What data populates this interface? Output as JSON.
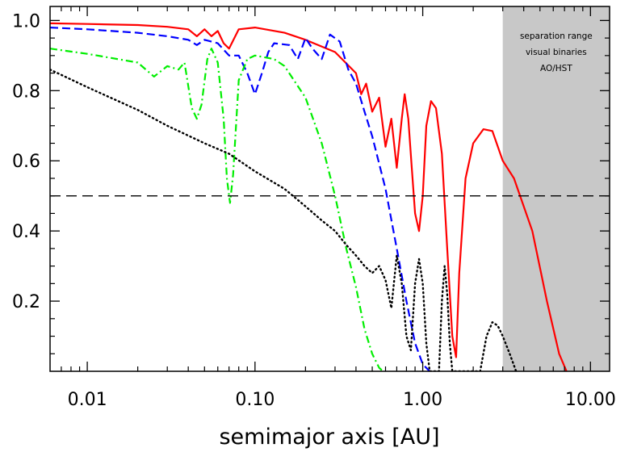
{
  "chart_data": {
    "type": "line",
    "title": "",
    "xlabel": "semimajor axis [AU]",
    "ylabel": "",
    "xscale": "log",
    "xlim": [
      0.006,
      13.0
    ],
    "ylim": [
      0.0,
      1.04
    ],
    "x_ticks": [
      {
        "value": 0.01,
        "label": "0.01"
      },
      {
        "value": 0.1,
        "label": "0.10"
      },
      {
        "value": 1.0,
        "label": "1.00"
      },
      {
        "value": 10.0,
        "label": "10.00"
      }
    ],
    "y_ticks": [
      {
        "value": 0.2,
        "label": "0.2"
      },
      {
        "value": 0.4,
        "label": "0.4"
      },
      {
        "value": 0.6,
        "label": "0.6"
      },
      {
        "value": 0.8,
        "label": "0.8"
      },
      {
        "value": 1.0,
        "label": "1.0"
      }
    ],
    "grid": false,
    "reference_line": {
      "y": 0.5,
      "color": "#000000",
      "style": "dashed"
    },
    "shaded_region": {
      "x_start": 3.0,
      "x_end": 13.0,
      "color": "#c8c8c8",
      "label_lines": [
        "separation range",
        "visual binaries",
        "AO/HST"
      ]
    },
    "series": [
      {
        "color": "#ff0000",
        "style": "solid",
        "points": [
          [
            0.006,
            0.992
          ],
          [
            0.01,
            0.99
          ],
          [
            0.02,
            0.987
          ],
          [
            0.03,
            0.982
          ],
          [
            0.04,
            0.975
          ],
          [
            0.045,
            0.955
          ],
          [
            0.05,
            0.975
          ],
          [
            0.055,
            0.955
          ],
          [
            0.06,
            0.97
          ],
          [
            0.065,
            0.935
          ],
          [
            0.07,
            0.92
          ],
          [
            0.08,
            0.975
          ],
          [
            0.1,
            0.98
          ],
          [
            0.15,
            0.965
          ],
          [
            0.2,
            0.945
          ],
          [
            0.3,
            0.91
          ],
          [
            0.4,
            0.85
          ],
          [
            0.43,
            0.79
          ],
          [
            0.46,
            0.82
          ],
          [
            0.5,
            0.74
          ],
          [
            0.55,
            0.78
          ],
          [
            0.6,
            0.64
          ],
          [
            0.65,
            0.72
          ],
          [
            0.7,
            0.58
          ],
          [
            0.75,
            0.72
          ],
          [
            0.78,
            0.79
          ],
          [
            0.82,
            0.72
          ],
          [
            0.86,
            0.58
          ],
          [
            0.9,
            0.45
          ],
          [
            0.95,
            0.4
          ],
          [
            1.0,
            0.5
          ],
          [
            1.05,
            0.7
          ],
          [
            1.12,
            0.77
          ],
          [
            1.2,
            0.75
          ],
          [
            1.3,
            0.62
          ],
          [
            1.4,
            0.35
          ],
          [
            1.5,
            0.1
          ],
          [
            1.58,
            0.04
          ],
          [
            1.65,
            0.28
          ],
          [
            1.8,
            0.55
          ],
          [
            2.0,
            0.65
          ],
          [
            2.3,
            0.69
          ],
          [
            2.6,
            0.685
          ],
          [
            3.0,
            0.6
          ],
          [
            3.5,
            0.55
          ],
          [
            4.5,
            0.4
          ],
          [
            5.5,
            0.2
          ],
          [
            6.5,
            0.05
          ],
          [
            7.2,
            0.0
          ]
        ]
      },
      {
        "color": "#0000ff",
        "style": "dashed",
        "points": [
          [
            0.006,
            0.98
          ],
          [
            0.01,
            0.975
          ],
          [
            0.02,
            0.965
          ],
          [
            0.03,
            0.955
          ],
          [
            0.04,
            0.945
          ],
          [
            0.045,
            0.93
          ],
          [
            0.05,
            0.945
          ],
          [
            0.06,
            0.935
          ],
          [
            0.07,
            0.9
          ],
          [
            0.08,
            0.9
          ],
          [
            0.09,
            0.85
          ],
          [
            0.1,
            0.79
          ],
          [
            0.11,
            0.85
          ],
          [
            0.12,
            0.91
          ],
          [
            0.13,
            0.935
          ],
          [
            0.16,
            0.93
          ],
          [
            0.18,
            0.89
          ],
          [
            0.2,
            0.95
          ],
          [
            0.22,
            0.92
          ],
          [
            0.25,
            0.89
          ],
          [
            0.28,
            0.96
          ],
          [
            0.32,
            0.94
          ],
          [
            0.36,
            0.86
          ],
          [
            0.4,
            0.82
          ],
          [
            0.45,
            0.74
          ],
          [
            0.5,
            0.67
          ],
          [
            0.6,
            0.52
          ],
          [
            0.7,
            0.35
          ],
          [
            0.8,
            0.2
          ],
          [
            0.9,
            0.08
          ],
          [
            1.0,
            0.02
          ],
          [
            1.1,
            0.0
          ]
        ]
      },
      {
        "color": "#00ee00",
        "style": "dashdot",
        "points": [
          [
            0.006,
            0.92
          ],
          [
            0.01,
            0.905
          ],
          [
            0.02,
            0.88
          ],
          [
            0.025,
            0.84
          ],
          [
            0.03,
            0.87
          ],
          [
            0.035,
            0.86
          ],
          [
            0.038,
            0.88
          ],
          [
            0.042,
            0.75
          ],
          [
            0.045,
            0.72
          ],
          [
            0.048,
            0.76
          ],
          [
            0.052,
            0.89
          ],
          [
            0.055,
            0.92
          ],
          [
            0.06,
            0.88
          ],
          [
            0.065,
            0.72
          ],
          [
            0.068,
            0.55
          ],
          [
            0.071,
            0.48
          ],
          [
            0.074,
            0.56
          ],
          [
            0.08,
            0.83
          ],
          [
            0.09,
            0.89
          ],
          [
            0.1,
            0.9
          ],
          [
            0.13,
            0.89
          ],
          [
            0.15,
            0.87
          ],
          [
            0.2,
            0.78
          ],
          [
            0.25,
            0.65
          ],
          [
            0.3,
            0.5
          ],
          [
            0.35,
            0.35
          ],
          [
            0.4,
            0.24
          ],
          [
            0.45,
            0.12
          ],
          [
            0.5,
            0.05
          ],
          [
            0.55,
            0.01
          ],
          [
            0.58,
            0.0
          ]
        ]
      },
      {
        "color": "#000000",
        "style": "dotted",
        "points": [
          [
            0.006,
            0.86
          ],
          [
            0.01,
            0.81
          ],
          [
            0.02,
            0.745
          ],
          [
            0.03,
            0.7
          ],
          [
            0.05,
            0.65
          ],
          [
            0.07,
            0.62
          ],
          [
            0.1,
            0.57
          ],
          [
            0.15,
            0.52
          ],
          [
            0.2,
            0.47
          ],
          [
            0.25,
            0.43
          ],
          [
            0.3,
            0.4
          ],
          [
            0.35,
            0.36
          ],
          [
            0.4,
            0.33
          ],
          [
            0.45,
            0.3
          ],
          [
            0.5,
            0.28
          ],
          [
            0.55,
            0.3
          ],
          [
            0.6,
            0.26
          ],
          [
            0.65,
            0.18
          ],
          [
            0.7,
            0.33
          ],
          [
            0.75,
            0.25
          ],
          [
            0.8,
            0.1
          ],
          [
            0.85,
            0.06
          ],
          [
            0.9,
            0.25
          ],
          [
            0.95,
            0.32
          ],
          [
            1.0,
            0.25
          ],
          [
            1.05,
            0.08
          ],
          [
            1.1,
            0.0
          ],
          [
            1.25,
            0.0
          ],
          [
            1.3,
            0.2
          ],
          [
            1.35,
            0.3
          ],
          [
            1.4,
            0.22
          ],
          [
            1.45,
            0.08
          ],
          [
            1.5,
            0.0
          ],
          [
            2.2,
            0.0
          ],
          [
            2.4,
            0.1
          ],
          [
            2.6,
            0.14
          ],
          [
            2.8,
            0.13
          ],
          [
            3.0,
            0.1
          ],
          [
            3.3,
            0.05
          ],
          [
            3.6,
            0.0
          ]
        ]
      }
    ]
  }
}
